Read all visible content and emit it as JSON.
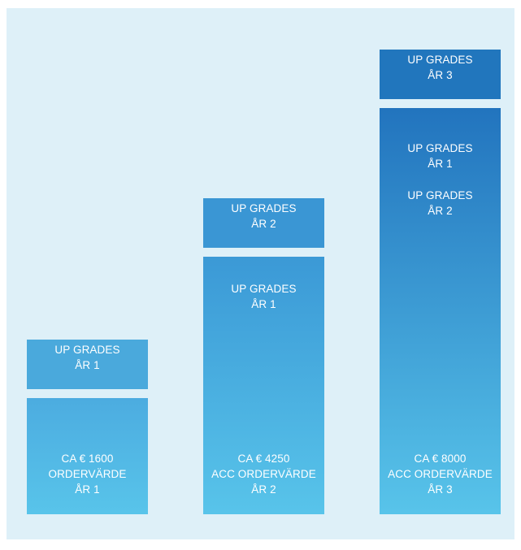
{
  "columns": [
    {
      "top_block": [
        "UP GRADES",
        "ÅR 1"
      ],
      "main_upgrades": [],
      "bottom": [
        "CA € 1600",
        "ORDERVÄRDE",
        "ÅR 1"
      ]
    },
    {
      "top_block": [
        "UP GRADES",
        "ÅR 2"
      ],
      "main_upgrades": [
        [
          "UP GRADES",
          "ÅR 1"
        ]
      ],
      "bottom": [
        "CA € 4250",
        "ACC ORDERVÄRDE",
        "ÅR 2"
      ]
    },
    {
      "top_block": [
        "UP GRADES",
        "ÅR 3"
      ],
      "main_upgrades": [
        [
          "UP GRADES",
          "ÅR 1"
        ],
        [
          "UP GRADES",
          "ÅR 2"
        ]
      ],
      "bottom": [
        "CA € 8000",
        "ACC ORDERVÄRDE",
        "ÅR 3"
      ]
    }
  ],
  "colors": {
    "panel_background": "#def0f8",
    "text": "#ffffff",
    "column1": "#4aa9dc",
    "column2": "#3a96d4",
    "column3": "#2176bd",
    "gradient_bottom": "#58c4ea"
  }
}
